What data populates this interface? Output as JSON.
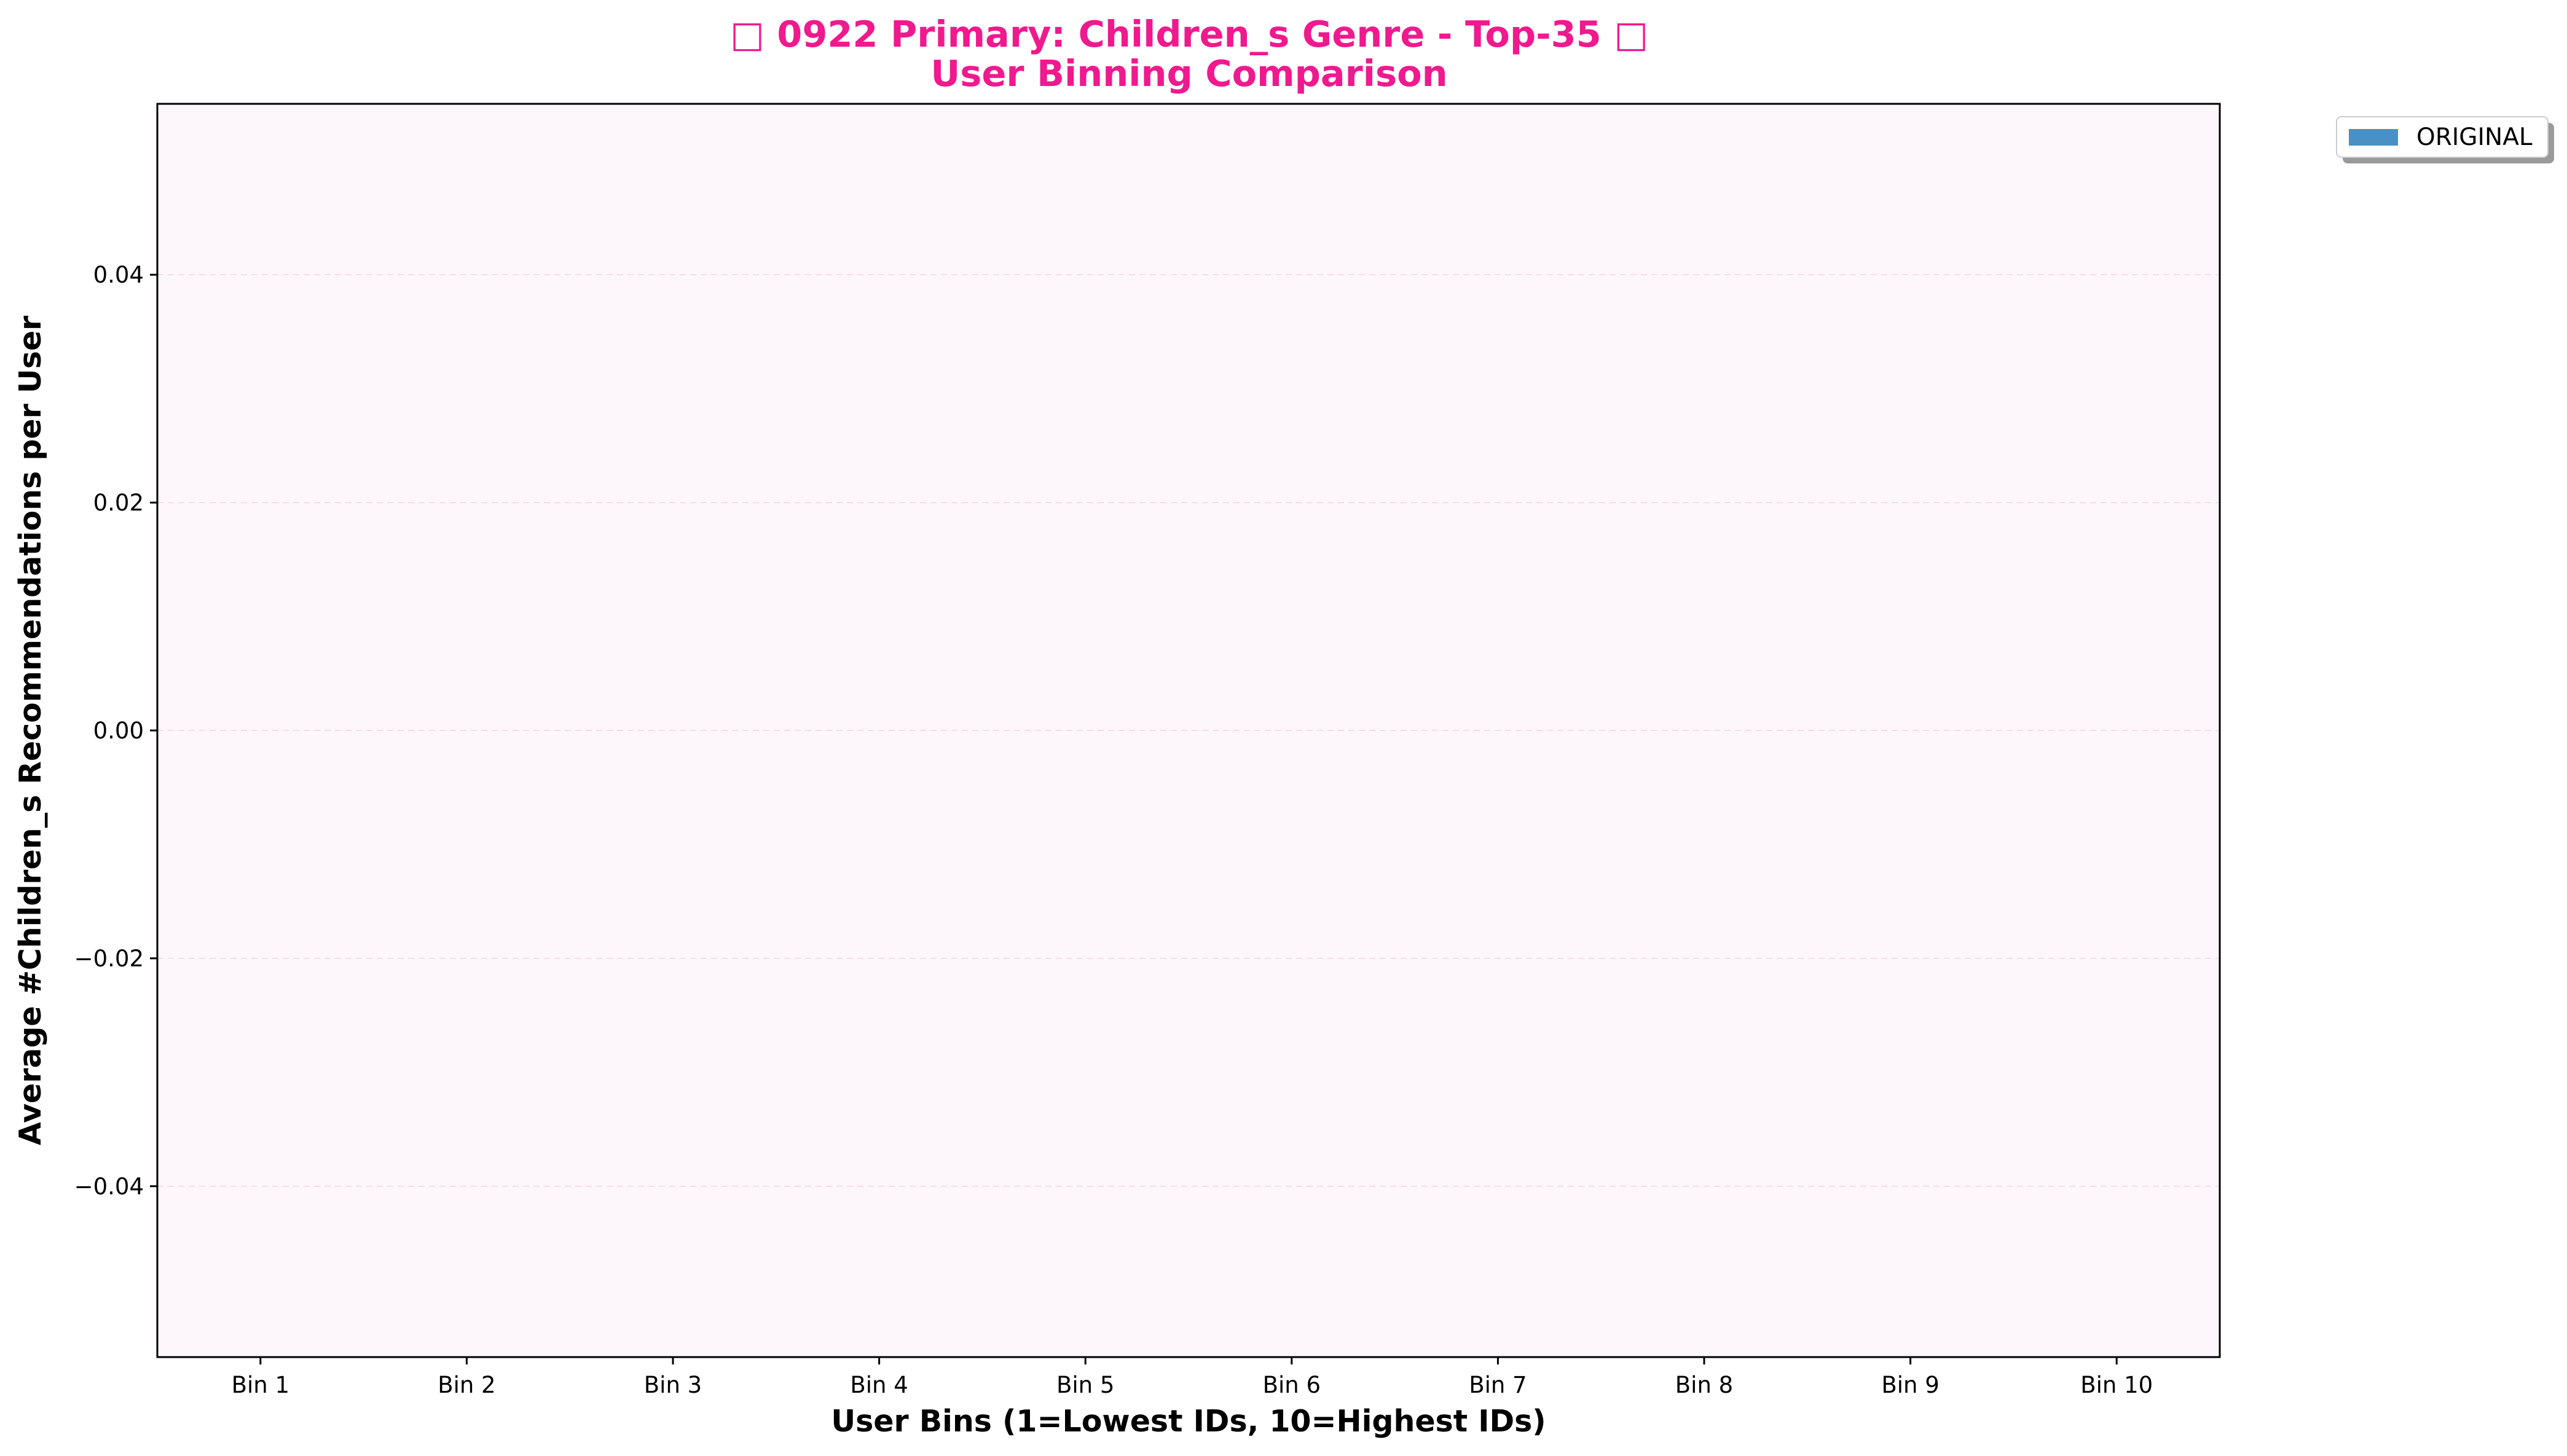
{
  "chart_data": {
    "type": "bar",
    "title": "□ 0922 Primary: Children_s Genre - Top-35 □",
    "subtitle": "User Binning Comparison",
    "xlabel": "User Bins (1=Lowest IDs, 10=Highest IDs)",
    "ylabel": "Average #Children_s Recommendations per User",
    "categories": [
      "Bin 1",
      "Bin 2",
      "Bin 3",
      "Bin 4",
      "Bin 5",
      "Bin 6",
      "Bin 7",
      "Bin 8",
      "Bin 9",
      "Bin 10"
    ],
    "series": [
      {
        "name": "ORIGINAL",
        "values": [
          0,
          0,
          0,
          0,
          0,
          0,
          0,
          0,
          0,
          0
        ],
        "color": "#4a90c4"
      }
    ],
    "ylim": [
      -0.055,
      0.055
    ],
    "yticks": [
      0.04,
      0.02,
      0.0,
      -0.02,
      -0.04
    ],
    "ytick_labels": [
      "0.04",
      "0.02",
      "0.00",
      "−0.02",
      "−0.04"
    ],
    "grid": true,
    "legend_position": "outside top-right",
    "colors": {
      "title": "#f0198e",
      "plot_background": "#fdf7fb",
      "grid": "#f5dce9"
    }
  }
}
